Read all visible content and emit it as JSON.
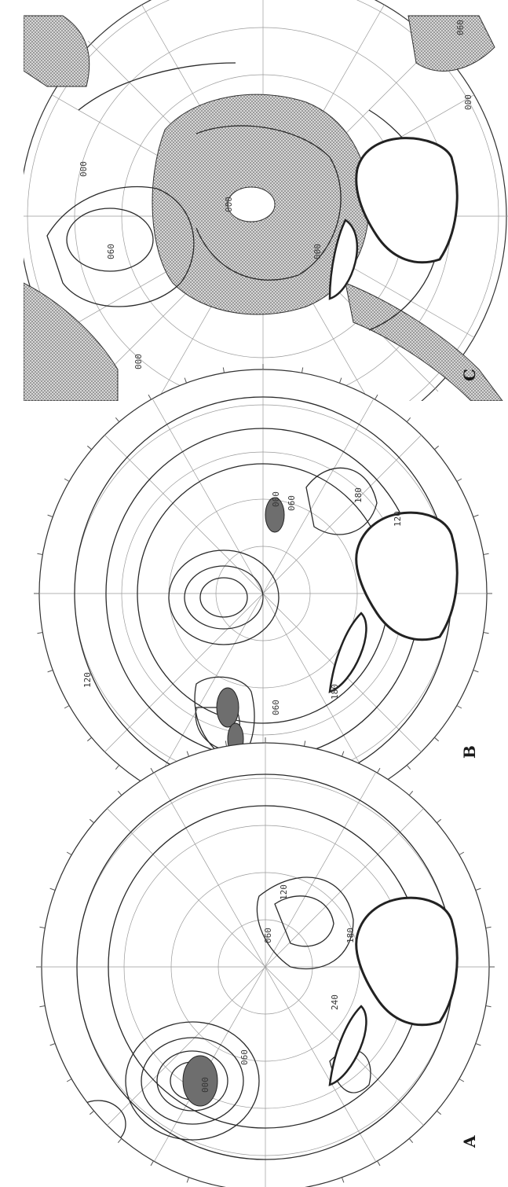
{
  "figure": {
    "panels": [
      {
        "id": "A",
        "letter": "A",
        "contour_labels": [
          "120",
          "180",
          "240",
          "000",
          "060",
          "120",
          "060",
          "180"
        ]
      },
      {
        "id": "B",
        "letter": "B",
        "contour_labels": [
          "180",
          "060",
          "180",
          "120",
          "180",
          "060",
          "000",
          "120"
        ]
      },
      {
        "id": "C",
        "letter": "C",
        "contour_labels": [
          "000",
          "060",
          "000",
          "000",
          "060",
          "000",
          "000"
        ]
      }
    ]
  },
  "colors": {
    "background": "#ffffff",
    "line": "#2a2a2a",
    "graticule": "#9a9a9a",
    "stipple": "#bdbdbd",
    "dark_fill": "#6e6e6e"
  }
}
